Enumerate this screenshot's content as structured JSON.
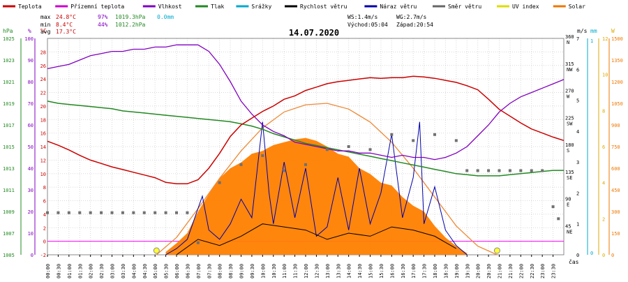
{
  "chart_data": {
    "type": "line",
    "title": "14.07.2020",
    "legend": [
      {
        "name": "Teplota",
        "color": "#cc0000"
      },
      {
        "name": "Přízemní teplota",
        "color": "#cc00cc"
      },
      {
        "name": "Vlhkost",
        "color": "#8000c0"
      },
      {
        "name": "Tlak",
        "color": "#228822"
      },
      {
        "name": "Srážky",
        "color": "#00aacc"
      },
      {
        "name": "Rychlost větru",
        "color": "#000000"
      },
      {
        "name": "Náraz větru",
        "color": "#0000aa"
      },
      {
        "name": "Směr větru",
        "color": "#666666"
      },
      {
        "name": "UV index",
        "color": "#dddd00"
      },
      {
        "name": "Solar",
        "color": "#ee7700"
      }
    ],
    "stats": {
      "max_label": "max",
      "max_temp": "24.8°C",
      "max_hum": "97%",
      "max_press": "1019.3hPa",
      "rain": "0.0mm",
      "min_label": "min",
      "min_temp": "8.4°C",
      "min_hum": "44%",
      "min_press": "1012.2hPa",
      "avg_label": "avg",
      "avg_temp": "17.3°C"
    },
    "wind_info": {
      "ws": "WS:1.4m/s",
      "wg": "WG:2.7m/s"
    },
    "sun_info": {
      "sunrise": "Východ:05:04",
      "sunset": "Západ:20:54"
    },
    "left_axes": {
      "hpa": {
        "unit": "hPa",
        "ticks": [
          "1025",
          "1023",
          "1021",
          "1019",
          "1017",
          "1015",
          "1013",
          "1011",
          "1009",
          "1007",
          "1005"
        ]
      },
      "pct": {
        "unit": "%",
        "ticks": [
          "100",
          "90",
          "80",
          "70",
          "60",
          "50",
          "40",
          "30",
          "20",
          "10",
          "0"
        ]
      },
      "degc": {
        "unit": "°C",
        "ticks": [
          "28",
          "26",
          "24",
          "22",
          "20",
          "18",
          "16",
          "14",
          "12",
          "10",
          "8",
          "6",
          "4",
          "2",
          "0",
          "-2"
        ]
      }
    },
    "right_axes": {
      "ms": {
        "unit": "m/s",
        "ticks": [
          "7",
          "6",
          "5",
          "4",
          "3",
          "2",
          "1",
          "0"
        ]
      },
      "mm": {
        "unit": "mm",
        "ticks": [
          "1",
          "0"
        ]
      },
      "uv": {
        "unit": "W",
        "ticks": [
          "12",
          "10",
          "8",
          "6",
          "4",
          "2",
          "0"
        ]
      },
      "wm2": {
        "ticks": [
          "1500",
          "1350",
          "1200",
          "1050",
          "900",
          "750",
          "600",
          "450",
          "300",
          "150",
          "0"
        ]
      },
      "dir": {
        "labels": [
          {
            "deg": "360",
            "name": "N"
          },
          {
            "deg": "315",
            "name": "NW"
          },
          {
            "deg": "270",
            "name": "W"
          },
          {
            "deg": "225",
            "name": "SW"
          },
          {
            "deg": "180",
            "name": "S"
          },
          {
            "deg": "135",
            "name": "SE"
          },
          {
            "deg": "90",
            "name": "E"
          },
          {
            "deg": "45",
            "name": "NE"
          }
        ]
      }
    },
    "x_ticks": [
      "00:00",
      "00:30",
      "01:00",
      "01:30",
      "02:00",
      "02:30",
      "03:00",
      "03:30",
      "04:00",
      "04:30",
      "05:00",
      "05:30",
      "06:00",
      "06:30",
      "07:00",
      "07:30",
      "08:00",
      "08:30",
      "09:00",
      "09:30",
      "10:00",
      "10:30",
      "11:00",
      "11:30",
      "12:00",
      "12:30",
      "13:00",
      "13:30",
      "14:00",
      "14:30",
      "15:00",
      "15:30",
      "16:00",
      "16:30",
      "17:00",
      "17:30",
      "18:00",
      "18:30",
      "19:00",
      "19:30",
      "20:00",
      "20:30",
      "21:00",
      "21:30",
      "22:00",
      "22:30",
      "23:00",
      "23:30"
    ],
    "x_label": "čas",
    "x_range_hours": [
      0,
      24
    ],
    "ylim": {
      "temp": [
        -2,
        30
      ],
      "hum": [
        0,
        100
      ],
      "press": [
        1005,
        1025
      ],
      "wind": [
        0,
        7
      ],
      "dir": [
        0,
        360
      ],
      "solar": [
        0,
        1500
      ]
    },
    "series": {
      "temperature": {
        "x": [
          0,
          0.5,
          1,
          1.5,
          2,
          2.5,
          3,
          3.5,
          4,
          4.5,
          5,
          5.5,
          6,
          6.5,
          7,
          7.5,
          8,
          8.5,
          9,
          9.5,
          10,
          10.5,
          11,
          11.5,
          12,
          12.5,
          13,
          13.5,
          14,
          14.5,
          15,
          15.5,
          16,
          16.5,
          17,
          17.5,
          18,
          18.5,
          19,
          19.5,
          20,
          20.5,
          21,
          21.5,
          22,
          22.5,
          23,
          23.5,
          24
        ],
        "y": [
          14.8,
          14.2,
          13.5,
          12.7,
          12.0,
          11.5,
          11.0,
          10.6,
          10.2,
          9.8,
          9.4,
          8.7,
          8.5,
          8.5,
          9.1,
          10.8,
          13.0,
          15.5,
          17.2,
          18.2,
          19.2,
          20.0,
          21.0,
          21.5,
          22.3,
          22.8,
          23.3,
          23.6,
          23.8,
          24.0,
          24.2,
          24.1,
          24.2,
          24.2,
          24.4,
          24.3,
          24.1,
          23.8,
          23.5,
          23.0,
          22.4,
          21.0,
          19.5,
          18.5,
          17.5,
          16.6,
          16.0,
          15.4,
          14.9
        ]
      },
      "humidity": {
        "x": [
          0,
          0.5,
          1,
          1.5,
          2,
          2.5,
          3,
          3.5,
          4,
          4.5,
          5,
          5.5,
          6,
          6.5,
          7,
          7.5,
          8,
          8.5,
          9,
          9.5,
          10,
          10.5,
          11,
          11.5,
          12,
          12.5,
          13,
          13.5,
          14,
          14.5,
          15,
          15.5,
          16,
          16.5,
          17,
          17.5,
          18,
          18.5,
          19,
          19.5,
          20,
          20.5,
          21,
          21.5,
          22,
          22.5,
          23,
          23.5,
          24
        ],
        "y": [
          86,
          87,
          88,
          90,
          92,
          93,
          94,
          94,
          95,
          95,
          96,
          96,
          97,
          97,
          97,
          94,
          88,
          80,
          71,
          65,
          60,
          57,
          55,
          52,
          51,
          50,
          49,
          48,
          48,
          47,
          47,
          46,
          45,
          46,
          45,
          45,
          44,
          45,
          47,
          50,
          55,
          60,
          66,
          70,
          73,
          75,
          77,
          79,
          81
        ]
      },
      "pressure": {
        "x": [
          0,
          0.5,
          1,
          1.5,
          2,
          2.5,
          3,
          3.5,
          4,
          4.5,
          5,
          5.5,
          6,
          6.5,
          7,
          7.5,
          8,
          8.5,
          9,
          9.5,
          10,
          10.5,
          11,
          11.5,
          12,
          12.5,
          13,
          13.5,
          14,
          14.5,
          15,
          15.5,
          16,
          16.5,
          17,
          17.5,
          18,
          18.5,
          19,
          19.5,
          20,
          20.5,
          21,
          21.5,
          22,
          22.5,
          23,
          23.5,
          24
        ],
        "y": [
          1019.2,
          1019.0,
          1018.9,
          1018.8,
          1018.7,
          1018.6,
          1018.5,
          1018.3,
          1018.2,
          1018.1,
          1018.0,
          1017.9,
          1017.8,
          1017.7,
          1017.6,
          1017.5,
          1017.4,
          1017.3,
          1017.1,
          1016.9,
          1016.6,
          1016.2,
          1015.9,
          1015.6,
          1015.3,
          1015.1,
          1014.9,
          1014.7,
          1014.5,
          1014.3,
          1014.1,
          1013.9,
          1013.7,
          1013.5,
          1013.3,
          1013.1,
          1012.9,
          1012.7,
          1012.5,
          1012.4,
          1012.3,
          1012.3,
          1012.3,
          1012.4,
          1012.5,
          1012.6,
          1012.7,
          1012.8,
          1012.8
        ]
      },
      "wind_direction": {
        "x": [
          0,
          0.5,
          1,
          1.5,
          2,
          2.5,
          3,
          3.5,
          4,
          4.5,
          5,
          5.5,
          6,
          6.5,
          7,
          8,
          9,
          10,
          11,
          12,
          13,
          14,
          15,
          16,
          17,
          18,
          19,
          19.5,
          20,
          20.5,
          21,
          21.5,
          22,
          22.5,
          23,
          23.5,
          23.75
        ],
        "y": [
          70,
          70,
          70,
          70,
          70,
          70,
          70,
          70,
          70,
          70,
          70,
          70,
          70,
          70,
          20,
          120,
          150,
          165,
          140,
          150,
          175,
          180,
          175,
          200,
          190,
          200,
          190,
          140,
          140,
          140,
          140,
          140,
          140,
          140,
          140,
          80,
          60
        ]
      },
      "solar": {
        "x": [
          5.5,
          6,
          6.5,
          7,
          7.5,
          8,
          8.5,
          9,
          9.5,
          10,
          10.5,
          11,
          11.5,
          12,
          12.5,
          13,
          13.5,
          14,
          14.5,
          15,
          15.5,
          16,
          16.5,
          17,
          17.5,
          18,
          18.5,
          19,
          19.5
        ],
        "y": [
          20,
          80,
          150,
          300,
          420,
          530,
          600,
          640,
          700,
          720,
          760,
          780,
          800,
          810,
          790,
          750,
          700,
          680,
          600,
          560,
          500,
          480,
          400,
          340,
          300,
          200,
          120,
          60,
          10
        ]
      },
      "solar_theoretical": {
        "x": [
          5.07,
          6,
          7,
          8,
          9,
          10,
          11,
          12,
          13,
          14,
          15,
          16,
          17,
          18,
          19,
          20,
          20.9
        ],
        "y": [
          0,
          120,
          320,
          530,
          720,
          880,
          990,
          1040,
          1050,
          1010,
          920,
          780,
          600,
          400,
          200,
          60,
          0
        ]
      },
      "wind_gust": {
        "x": [
          5.5,
          6,
          6.5,
          7,
          7.2,
          7.5,
          8,
          8.5,
          9,
          9.5,
          10,
          10.3,
          10.5,
          11,
          11.5,
          12,
          12.5,
          13,
          13.5,
          14,
          14.5,
          15,
          15.5,
          16,
          16.5,
          17,
          17.3,
          17.5,
          18,
          18.5,
          19,
          19.5
        ],
        "y": [
          0,
          0.2,
          0.5,
          1.5,
          1.9,
          0.8,
          0.5,
          1.0,
          1.8,
          1.2,
          4.3,
          2.0,
          1.0,
          3.0,
          1.2,
          2.8,
          0.6,
          0.9,
          2.5,
          0.8,
          2.8,
          1.0,
          2.0,
          3.9,
          1.2,
          2.5,
          4.3,
          1.0,
          2.2,
          0.8,
          0.3,
          0
        ]
      },
      "wind_speed": {
        "x": [
          6,
          7,
          8,
          9,
          10,
          11,
          12,
          13,
          14,
          15,
          16,
          17,
          18,
          19
        ],
        "y": [
          0,
          0.5,
          0.3,
          0.6,
          1.0,
          0.9,
          0.8,
          0.5,
          0.7,
          0.6,
          0.9,
          0.8,
          0.6,
          0.2
        ]
      }
    },
    "grid": true,
    "zero_line_color": "#ff00ff"
  }
}
